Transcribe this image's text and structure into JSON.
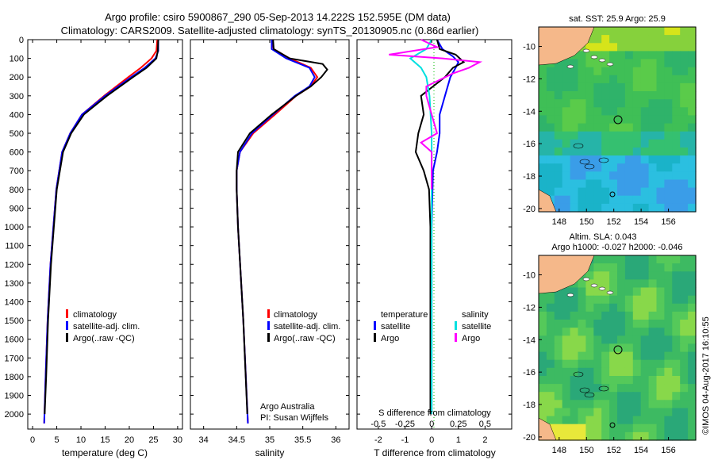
{
  "header": {
    "line1": "Argo profile: csiro 5900867_290 05-Sep-2013 14.222S 152.595E (DM data)",
    "line2": "Climatology: CARS2009. Satellite-adjusted climatology: synTS_20130905.nc (0.86d earlier)"
  },
  "colors": {
    "climatology": "#ff0000",
    "satellite": "#0000ff",
    "argo": "#000000",
    "argo_salinity": "#ff00ff",
    "satellite_salinity": "#00e0e0",
    "land": "#f5b88a"
  },
  "credit": "©IMOS 04-Aug-2017 16:10:55",
  "chart_data": [
    {
      "id": "temperature",
      "type": "line",
      "xlabel": "temperature (deg C)",
      "ylabel": "",
      "xlim": [
        -1,
        31
      ],
      "ylim": [
        2080,
        0
      ],
      "xticks": [
        0,
        5,
        10,
        15,
        20,
        25,
        30
      ],
      "yticks": [
        0,
        100,
        200,
        300,
        400,
        500,
        600,
        700,
        800,
        900,
        1000,
        1100,
        1200,
        1300,
        1400,
        1500,
        1600,
        1700,
        1800,
        1900,
        2000
      ],
      "legend": [
        "climatology",
        "satellite-adj. clim.",
        "Argo(..raw -QC)"
      ],
      "series": [
        {
          "name": "climatology",
          "color": "#ff0000",
          "depth": [
            0,
            60,
            100,
            150,
            200,
            300,
            400,
            500,
            600,
            800,
            1000,
            1200,
            1500,
            1800,
            2050
          ],
          "values": [
            25.8,
            25.6,
            24.6,
            22.4,
            19.8,
            14.8,
            10.2,
            7.8,
            6.1,
            4.9,
            4.3,
            3.7,
            3.1,
            2.7,
            2.4
          ]
        },
        {
          "name": "satellite-adj. clim.",
          "color": "#0000ff",
          "depth": [
            0,
            60,
            100,
            150,
            200,
            300,
            400,
            500,
            600,
            800,
            1000,
            1200,
            1500,
            1800,
            2050
          ],
          "values": [
            26.0,
            26.0,
            25.4,
            23.2,
            20.4,
            15.0,
            10.2,
            7.8,
            6.1,
            4.9,
            4.3,
            3.7,
            3.1,
            2.7,
            2.4
          ]
        },
        {
          "name": "Argo(..raw -QC)",
          "color": "#000000",
          "depth": [
            0,
            60,
            100,
            150,
            200,
            300,
            400,
            500,
            600,
            800,
            1000,
            1200,
            1500,
            1800,
            2000
          ],
          "values": [
            26.0,
            25.9,
            25.6,
            23.6,
            20.8,
            15.4,
            10.6,
            8.0,
            6.3,
            5.0,
            4.4,
            3.8,
            3.2,
            2.8,
            2.5
          ]
        }
      ]
    },
    {
      "id": "salinity",
      "type": "line",
      "xlabel": "salinity",
      "ylabel": "",
      "xlim": [
        33.8,
        36.2
      ],
      "ylim": [
        2080,
        0
      ],
      "xticks": [
        34,
        34.5,
        35,
        35.5,
        36
      ],
      "legend": [
        "climatology",
        "satellite-adj. clim.",
        "Argo(..raw -QC)"
      ],
      "annotation": [
        "Argo Australia",
        "PI: Susan Wijffels"
      ],
      "series": [
        {
          "name": "climatology",
          "color": "#ff0000",
          "depth": [
            0,
            50,
            100,
            150,
            200,
            250,
            300,
            400,
            500,
            600,
            700,
            800,
            1000,
            1500,
            2050
          ],
          "values": [
            35.03,
            35.06,
            35.3,
            35.62,
            35.72,
            35.62,
            35.4,
            35.08,
            34.75,
            34.55,
            34.5,
            34.5,
            34.52,
            34.6,
            34.67
          ]
        },
        {
          "name": "satellite-adj. clim.",
          "color": "#0000ff",
          "depth": [
            0,
            50,
            100,
            150,
            200,
            250,
            300,
            400,
            500,
            600,
            700,
            800,
            1000,
            1500,
            2050
          ],
          "values": [
            35.03,
            35.03,
            35.25,
            35.6,
            35.68,
            35.6,
            35.38,
            35.05,
            34.73,
            34.55,
            34.5,
            34.5,
            34.52,
            34.6,
            34.67
          ]
        },
        {
          "name": "Argo(..raw -QC)",
          "color": "#000000",
          "depth": [
            0,
            50,
            100,
            130,
            160,
            200,
            250,
            300,
            400,
            500,
            600,
            700,
            800,
            1000,
            1500,
            2000
          ],
          "values": [
            35.05,
            35.06,
            35.3,
            35.8,
            35.87,
            35.78,
            35.62,
            35.4,
            35.03,
            34.7,
            34.52,
            34.5,
            34.5,
            34.52,
            34.6,
            34.66
          ]
        }
      ]
    },
    {
      "id": "differences",
      "type": "line",
      "xlabel": "T difference from climatology",
      "xlabel_top": "S difference from climatology",
      "xlim": [
        -2.8,
        3.0
      ],
      "ylim": [
        2080,
        0
      ],
      "xticks": [
        -2,
        -1,
        0,
        1,
        2
      ],
      "xticks_salinity": [
        -0.5,
        -0.25,
        0,
        0.25,
        0.5
      ],
      "legend_titles": [
        "temperature",
        "salinity"
      ],
      "legend": [
        "satellite",
        "Argo",
        "satellite",
        "Argo"
      ],
      "series": [
        {
          "name": "temperature satellite",
          "color": "#0000ff",
          "depth": [
            0,
            50,
            90,
            120,
            150,
            200,
            300,
            400,
            500,
            600,
            700,
            1000,
            1500,
            2000
          ],
          "values": [
            0.2,
            0.4,
            0.8,
            1.0,
            0.9,
            0.7,
            0.5,
            0.3,
            0.3,
            0.2,
            0.05,
            0,
            0,
            0
          ]
        },
        {
          "name": "temperature Argo",
          "color": "#000000",
          "depth": [
            0,
            50,
            80,
            120,
            150,
            200,
            300,
            400,
            500,
            600,
            700,
            800,
            1000,
            1500,
            2000
          ],
          "values": [
            0.2,
            0.3,
            0.9,
            1.2,
            0.8,
            0.5,
            -0.4,
            -0.3,
            -0.5,
            -0.6,
            -0.3,
            -0.1,
            -0.05,
            -0.05,
            -0.05
          ]
        },
        {
          "name": "salinity satellite",
          "color": "#00e0e0",
          "depth": [
            0,
            50,
            100,
            150,
            200,
            300,
            500,
            800,
            1000,
            1500,
            2000
          ],
          "values": [
            0.0,
            -0.05,
            -0.2,
            -0.1,
            -0.05,
            -0.02,
            0.0,
            0.0,
            0.0,
            0.0,
            0.0
          ]
        },
        {
          "name": "salinity Argo",
          "color": "#ff00ff",
          "depth": [
            0,
            40,
            80,
            100,
            120,
            150,
            180,
            250,
            300,
            400,
            500,
            550,
            600,
            700,
            800
          ],
          "values": [
            -0.1,
            0.05,
            -0.4,
            0.1,
            0.45,
            0.35,
            0.2,
            -0.05,
            -0.05,
            0.0,
            0.05,
            -0.1,
            0.0,
            0.0,
            0.0
          ]
        }
      ]
    },
    {
      "id": "sst_map",
      "type": "heatmap",
      "title": "sat. SST: 25.9 Argo: 25.9",
      "xticks": [
        148,
        150,
        152,
        154,
        156
      ],
      "yticks": [
        -10,
        -12,
        -14,
        -16,
        -18,
        -20
      ],
      "xlim": [
        146.5,
        158
      ],
      "ylim": [
        -20.2,
        -8.8
      ],
      "argo_position": [
        152.6,
        -14.2
      ]
    },
    {
      "id": "sla_map",
      "type": "heatmap",
      "title": "Altim. SLA: 0.043",
      "subtitle": "Argo h1000: -0.027 h2000: -0.046",
      "xticks": [
        148,
        150,
        152,
        154,
        156
      ],
      "yticks": [
        -10,
        -12,
        -14,
        -16,
        -18,
        -20
      ],
      "xlim": [
        146.5,
        158
      ],
      "ylim": [
        -20.2,
        -8.8
      ],
      "argo_position": [
        152.6,
        -14.2
      ]
    }
  ]
}
